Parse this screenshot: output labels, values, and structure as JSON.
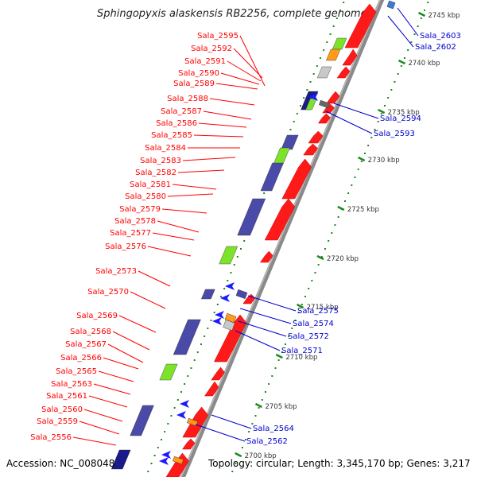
{
  "header": {
    "title": "Sphingopyxis alaskensis RB2256, complete genome"
  },
  "footer": {
    "accession": "Accession: NC_008048",
    "summary": "Topology: circular; Length: 3,345,170 bp; Genes: 3,217"
  },
  "colors": {
    "backbone": "#8a8a8a",
    "forward": "#ff1a1a",
    "cds_blue": "#4a4aa8",
    "green": "#7de22a",
    "orange": "#ff9a1a",
    "grey_box": "#c8c8c8",
    "blue_arrow": "#1a1aff",
    "tick": "#1a8a1a",
    "left_label": "#ff0000",
    "right_label": "#0000cc"
  },
  "scale_labels": [
    "2745 kbp",
    "2740 kbp",
    "2735 kbp",
    "2730 kbp",
    "2725 kbp",
    "2720 kbp",
    "2715 kbp",
    "2710 kbp",
    "2705 kbp",
    "2700 kbp"
  ],
  "left_genes": [
    "Sala_2595",
    "Sala_2592",
    "Sala_2591",
    "Sala_2590",
    "Sala_2589",
    "Sala_2588",
    "Sala_2587",
    "Sala_2586",
    "Sala_2585",
    "Sala_2584",
    "Sala_2583",
    "Sala_2582",
    "Sala_2581",
    "Sala_2580",
    "Sala_2579",
    "Sala_2578",
    "Sala_2577",
    "Sala_2576",
    "Sala_2573",
    "Sala_2570",
    "Sala_2569",
    "Sala_2568",
    "Sala_2567",
    "Sala_2566",
    "Sala_2565",
    "Sala_2563",
    "Sala_2561",
    "Sala_2560",
    "Sala_2559",
    "Sala_2556"
  ],
  "right_genes": [
    "Sala_2603",
    "Sala_2602",
    "Sala_2594",
    "Sala_2593",
    "Sala_2575",
    "Sala_2574",
    "Sala_2572",
    "Sala_2571",
    "Sala_2564",
    "Sala_2562"
  ]
}
